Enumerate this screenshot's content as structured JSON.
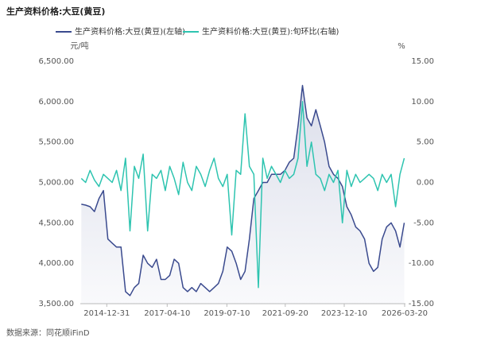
{
  "chart_data": {
    "type": "line",
    "title": "生产资料价格:大豆(黄豆)",
    "y_label": "元/吨",
    "y2_label": "%",
    "source": "数据来源：同花顺iFinD",
    "x": [
      "2014-01-15",
      "2014-03-15",
      "2014-05-15",
      "2014-07-15",
      "2014-09-15",
      "2014-11-15",
      "2015-01-15",
      "2015-03-15",
      "2015-05-15",
      "2015-07-15",
      "2015-09-15",
      "2015-11-15",
      "2016-01-15",
      "2016-03-15",
      "2016-05-15",
      "2016-07-15",
      "2016-09-15",
      "2016-11-15",
      "2017-01-15",
      "2017-03-15",
      "2017-05-15",
      "2017-07-15",
      "2017-09-15",
      "2017-11-15",
      "2018-01-15",
      "2018-03-15",
      "2018-05-15",
      "2018-07-15",
      "2018-09-15",
      "2018-11-15",
      "2019-01-15",
      "2019-03-15",
      "2019-05-15",
      "2019-07-15",
      "2019-09-15",
      "2019-11-15",
      "2020-01-15",
      "2020-03-15",
      "2020-05-15",
      "2020-07-15",
      "2020-09-15",
      "2020-11-15",
      "2021-01-15",
      "2021-03-15",
      "2021-05-15",
      "2021-07-15",
      "2021-09-15",
      "2021-11-15",
      "2022-01-15",
      "2022-03-15",
      "2022-05-15",
      "2022-07-15",
      "2022-09-15",
      "2022-11-15",
      "2023-01-15",
      "2023-03-15",
      "2023-05-15",
      "2023-07-15",
      "2023-09-15",
      "2023-11-15",
      "2024-01-15",
      "2024-03-15",
      "2024-05-15",
      "2024-07-15",
      "2024-09-15",
      "2024-11-15",
      "2025-01-15",
      "2025-03-15",
      "2025-05-15",
      "2025-07-15",
      "2025-09-15",
      "2025-11-15",
      "2026-01-15",
      "2026-03-15"
    ],
    "series": [
      {
        "name": "生产资料价格:大豆(黄豆)(左轴)",
        "color": "#3a4a8e",
        "axis": "y",
        "values": [
          4730,
          4720,
          4700,
          4640,
          4800,
          4900,
          4300,
          4250,
          4200,
          4200,
          3650,
          3600,
          3700,
          3750,
          4100,
          4000,
          3950,
          4050,
          3800,
          3800,
          3850,
          4050,
          4000,
          3700,
          3650,
          3700,
          3650,
          3750,
          3700,
          3650,
          3700,
          3750,
          3900,
          4200,
          4150,
          4000,
          3800,
          3900,
          4300,
          4800,
          4900,
          5000,
          5000,
          5100,
          5100,
          5100,
          5150,
          5250,
          5300,
          5700,
          6200,
          5800,
          5700,
          5900,
          5700,
          5500,
          5200,
          5100,
          5050,
          4950,
          4700,
          4600,
          4450,
          4400,
          4300,
          4000,
          3900,
          3950,
          4300,
          4450,
          4500,
          4400,
          4200,
          4500
        ]
      },
      {
        "name": "生产资料价格:大豆(黄豆):旬环比(右轴)",
        "color": "#2ec4b0",
        "axis": "y2",
        "values": [
          0.5,
          0,
          1.5,
          0.3,
          -0.5,
          1,
          0.5,
          0,
          1.5,
          -1,
          3,
          -6,
          2,
          0.5,
          3.5,
          -6,
          1,
          0.5,
          1.5,
          -1,
          2,
          0.5,
          -1.5,
          2.5,
          0,
          -1,
          2,
          1,
          -0.5,
          1.5,
          3,
          0.5,
          -0.5,
          1,
          -6.5,
          1.5,
          1,
          8.5,
          2,
          1,
          -13,
          3,
          0.5,
          2,
          1,
          0,
          1.5,
          0.5,
          1,
          3,
          10,
          2,
          5,
          1,
          0.5,
          -1,
          1,
          0,
          1.5,
          -5,
          1.5,
          -0.5,
          1,
          0,
          0.5,
          1,
          0.5,
          -1,
          1,
          0,
          1,
          -3,
          1,
          3
        ]
      }
    ],
    "xlim": [
      "2014-01-01",
      "2026-03-31"
    ],
    "xticks": [
      "2014-12-31",
      "2017-04-10",
      "2019-07-10",
      "2021-09-20",
      "2023-12-10",
      "2026-03-20"
    ],
    "ylim": [
      3500,
      6500
    ],
    "yticks": [
      {
        "value": 3500,
        "label": "3,500.00"
      },
      {
        "value": 4000,
        "label": "4,000.00"
      },
      {
        "value": 4500,
        "label": "4,500.00"
      },
      {
        "value": 5000,
        "label": "5,000.00"
      },
      {
        "value": 5500,
        "label": "5,500.00"
      },
      {
        "value": 6000,
        "label": "6,000.00"
      },
      {
        "value": 6500,
        "label": "6,500.00"
      }
    ],
    "y2lim": [
      -15,
      15
    ],
    "y2ticks": [
      {
        "value": -15,
        "label": "-15.00"
      },
      {
        "value": -10,
        "label": "-10.00"
      },
      {
        "value": -5,
        "label": "-5.00"
      },
      {
        "value": 0,
        "label": "0.00"
      },
      {
        "value": 5,
        "label": "5.00"
      },
      {
        "value": 10,
        "label": "10.00"
      },
      {
        "value": 15,
        "label": "15.00"
      }
    ],
    "grid": false
  }
}
